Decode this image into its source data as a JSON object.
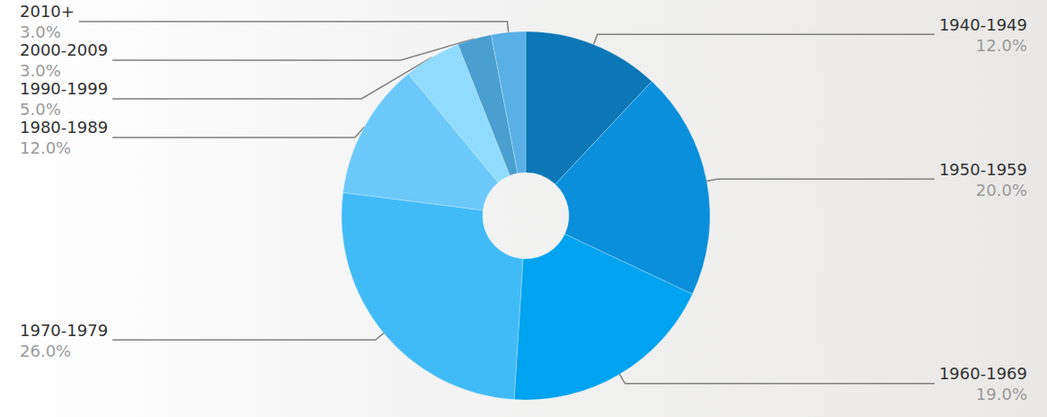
{
  "chart_data": {
    "type": "pie",
    "categories": [
      "1940-1949",
      "1950-1959",
      "1960-1969",
      "1970-1979",
      "1980-1989",
      "1990-1999",
      "2000-2009",
      "2010+"
    ],
    "values": [
      12,
      20,
      19,
      26,
      12,
      5,
      3,
      3
    ],
    "value_labels": [
      "12.0%",
      "20.0%",
      "19.0%",
      "26.0%",
      "12.0%",
      "5.0%",
      "3.0%",
      "3.0%"
    ],
    "colors": [
      "#0b77b6",
      "#0a8fdc",
      "#00a3f0",
      "#41bbf7",
      "#6cc9fc",
      "#8fdcfe",
      "#4a9fd0",
      "#58b0e6"
    ],
    "data_labels": true
  }
}
